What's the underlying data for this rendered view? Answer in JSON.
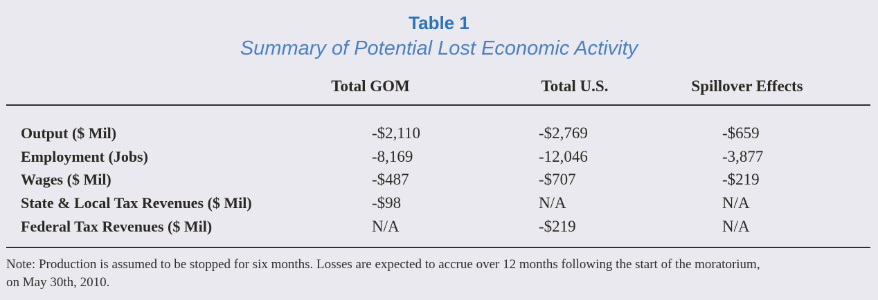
{
  "header": {
    "title": "Table 1",
    "subtitle": "Summary of Potential Lost Economic Activity"
  },
  "table": {
    "columns": [
      "Total GOM",
      "Total U.S.",
      "Spillover Effects"
    ],
    "rows": [
      {
        "label": "Output ($ Mil)",
        "values": [
          "-$2,110",
          "-$2,769",
          "-$659"
        ]
      },
      {
        "label": "Employment (Jobs)",
        "values": [
          "-8,169",
          "-12,046",
          "-3,877"
        ]
      },
      {
        "label": "Wages ($ Mil)",
        "values": [
          "-$487",
          "-$707",
          "-$219"
        ]
      },
      {
        "label": "State & Local Tax Revenues ($ Mil)",
        "values": [
          "-$98",
          "N/A",
          "N/A"
        ]
      },
      {
        "label": "Federal Tax Revenues ($ Mil)",
        "values": [
          "N/A",
          "-$219",
          "N/A"
        ]
      }
    ]
  },
  "note": {
    "line1": "Note: Production is assumed to be stopped for six months. Losses are expected to accrue over 12 months following the start of the moratorium,",
    "line2": "on May 30th, 2010."
  },
  "colors": {
    "background": "#e9e9ef",
    "title_blue": "#2e73b5",
    "subtitle_blue": "#4d80c0",
    "text": "#2b2824",
    "rule": "#2e2e2e"
  },
  "chart_data": {
    "type": "table",
    "title": "Table 1",
    "subtitle": "Summary of Potential Lost Economic Activity",
    "columns": [
      "",
      "Total GOM",
      "Total U.S.",
      "Spillover Effects"
    ],
    "rows": [
      [
        "Output ($ Mil)",
        "-$2,110",
        "-$2,769",
        "-$659"
      ],
      [
        "Employment (Jobs)",
        "-8,169",
        "-12,046",
        "-3,877"
      ],
      [
        "Wages ($ Mil)",
        "-$487",
        "-$707",
        "-$219"
      ],
      [
        "State & Local Tax Revenues ($ Mil)",
        "-$98",
        "N/A",
        "N/A"
      ],
      [
        "Federal Tax Revenues ($ Mil)",
        "N/A",
        "-$219",
        "N/A"
      ]
    ],
    "note": "Note: Production is assumed to be stopped for six months. Losses are expected to accrue over 12 months following the start of the moratorium, on May 30th, 2010."
  }
}
